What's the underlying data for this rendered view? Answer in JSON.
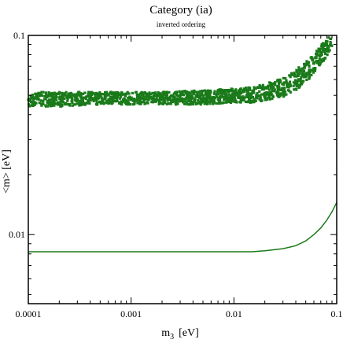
{
  "chart_data": {
    "type": "scatter",
    "title": "Category (ia)",
    "subtitle": "inverted ordering",
    "xlabel": "m",
    "xlabel_subscript": "3",
    "xlabel_unit": "[eV]",
    "ylabel": "<m>  [eV]",
    "xscale": "log",
    "yscale": "log",
    "xlim": [
      0.0001,
      0.1
    ],
    "ylim": [
      0.0045,
      0.1
    ],
    "x_ticks": [
      {
        "value": 0.0001,
        "label": "0.0001"
      },
      {
        "value": 0.001,
        "label": "0.001"
      },
      {
        "value": 0.01,
        "label": "0.01"
      },
      {
        "value": 0.1,
        "label": "0.1"
      }
    ],
    "y_ticks": [
      {
        "value": 0.01,
        "label": "0.01"
      },
      {
        "value": 0.1,
        "label": "0.1"
      }
    ],
    "color": "#1a7a1a",
    "series": [
      {
        "kind": "scatter-band",
        "x": [
          0.0001,
          0.0002,
          0.0005,
          0.001,
          0.002,
          0.005,
          0.01,
          0.015,
          0.02,
          0.03,
          0.04,
          0.05,
          0.06,
          0.07,
          0.08,
          0.09
        ],
        "ymin": [
          0.044,
          0.044,
          0.045,
          0.045,
          0.045,
          0.045,
          0.046,
          0.046,
          0.047,
          0.049,
          0.053,
          0.058,
          0.064,
          0.071,
          0.079,
          0.087
        ],
        "ymax": [
          0.052,
          0.052,
          0.052,
          0.052,
          0.052,
          0.053,
          0.054,
          0.055,
          0.057,
          0.061,
          0.067,
          0.074,
          0.081,
          0.089,
          0.097,
          0.1
        ]
      },
      {
        "kind": "line",
        "x": [
          0.0001,
          0.0003,
          0.001,
          0.003,
          0.006,
          0.01,
          0.015,
          0.02,
          0.03,
          0.04,
          0.05,
          0.06,
          0.07,
          0.08,
          0.09,
          0.1
        ],
        "y": [
          0.0082,
          0.0082,
          0.0082,
          0.0082,
          0.0082,
          0.0082,
          0.0082,
          0.0083,
          0.0085,
          0.0088,
          0.0093,
          0.01,
          0.0108,
          0.0118,
          0.013,
          0.0145
        ]
      }
    ]
  }
}
